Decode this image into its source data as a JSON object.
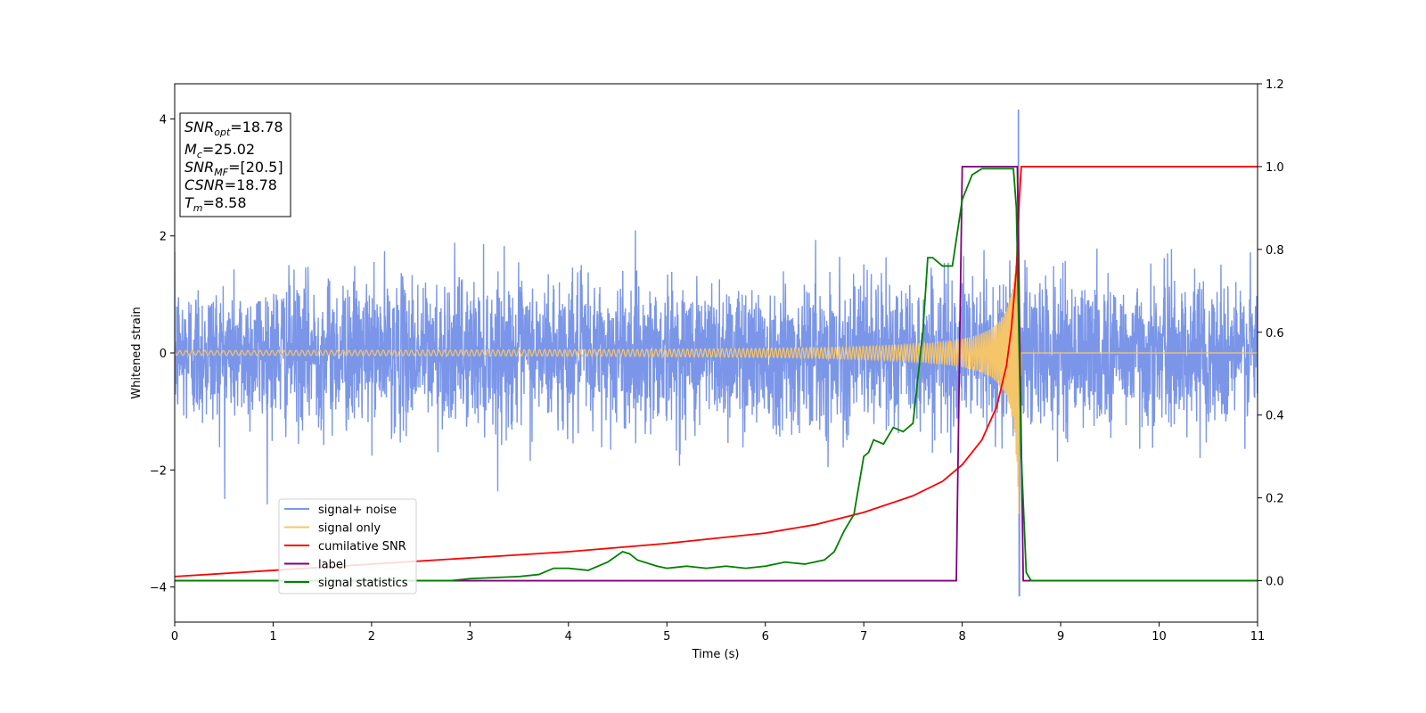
{
  "chart_data": {
    "type": "line",
    "title": "",
    "xlabel": "Time (s)",
    "ylabel": "Whitened strain",
    "xlim": [
      0,
      11
    ],
    "ylim": [
      -4.6,
      4.6
    ],
    "y2lim": [
      -0.1,
      1.2
    ],
    "xticks": [
      0,
      1,
      2,
      3,
      4,
      5,
      6,
      7,
      8,
      9,
      10,
      11
    ],
    "yticks": [
      -4,
      -2,
      0,
      2,
      4
    ],
    "y2ticks": [
      "0.0",
      "0.2",
      "0.4",
      "0.6",
      "0.8",
      "1.0",
      "1.2"
    ],
    "legend_placement": "lower-left",
    "grid": false,
    "annotation": {
      "lines": [
        {
          "base": "SNR",
          "sub": "opt",
          "value": "=18.78"
        },
        {
          "base": "M",
          "sub": "c",
          "value": "=25.02"
        },
        {
          "base": "SNR",
          "sub": "MF",
          "value": "=[20.5]"
        },
        {
          "base": "CSNR",
          "sub": "",
          "value": "=18.78"
        },
        {
          "base": "T",
          "sub": "m",
          "value": "=8.58"
        }
      ]
    },
    "series": [
      {
        "name": "signal+ noise",
        "axis": "left",
        "color": "#7b96e8",
        "description_values": {
          "kind": "noise",
          "typical_envelope": 1.7,
          "min": -4.15,
          "max": 4.15,
          "extreme_time": 8.57
        }
      },
      {
        "name": "signal only",
        "axis": "left",
        "color": "#f5c56a",
        "chirp": {
          "start_amplitude": 0.02,
          "peak_amplitude": 3.4,
          "merger_time": 8.58,
          "end_value": 0
        }
      },
      {
        "name": "cumilative SNR",
        "axis": "right",
        "color": "#ff0000",
        "x": [
          0,
          1,
          2,
          3,
          4,
          5,
          6,
          6.5,
          7,
          7.5,
          7.8,
          8.0,
          8.2,
          8.35,
          8.45,
          8.5,
          8.55,
          8.58,
          8.6,
          11
        ],
        "y": [
          0.01,
          0.025,
          0.04,
          0.055,
          0.07,
          0.09,
          0.115,
          0.135,
          0.165,
          0.205,
          0.24,
          0.28,
          0.34,
          0.42,
          0.52,
          0.61,
          0.75,
          0.92,
          1.0,
          1.0
        ]
      },
      {
        "name": "label",
        "axis": "right",
        "color": "#800080",
        "x": [
          0,
          7.94,
          8.0,
          8.56,
          8.62,
          11
        ],
        "y": [
          0,
          0,
          1,
          1,
          0,
          0
        ]
      },
      {
        "name": "signal statistics",
        "axis": "right",
        "color": "#008000",
        "x": [
          0,
          2.8,
          3.0,
          3.5,
          3.7,
          3.85,
          4.0,
          4.2,
          4.4,
          4.55,
          4.62,
          4.7,
          4.9,
          5.0,
          5.2,
          5.4,
          5.6,
          5.8,
          6.0,
          6.2,
          6.4,
          6.6,
          6.7,
          6.8,
          6.9,
          7.0,
          7.05,
          7.1,
          7.2,
          7.3,
          7.4,
          7.5,
          7.6,
          7.65,
          7.7,
          7.8,
          7.9,
          8.0,
          8.1,
          8.2,
          8.3,
          8.4,
          8.52,
          8.55,
          8.6,
          8.65,
          8.7,
          11
        ],
        "y": [
          0,
          0.0,
          0.005,
          0.01,
          0.015,
          0.03,
          0.03,
          0.025,
          0.045,
          0.07,
          0.065,
          0.05,
          0.035,
          0.03,
          0.035,
          0.03,
          0.035,
          0.03,
          0.035,
          0.045,
          0.04,
          0.05,
          0.07,
          0.12,
          0.16,
          0.3,
          0.31,
          0.34,
          0.33,
          0.37,
          0.36,
          0.38,
          0.6,
          0.78,
          0.78,
          0.76,
          0.76,
          0.92,
          0.98,
          0.995,
          0.995,
          0.995,
          0.995,
          0.9,
          0.3,
          0.02,
          0.0,
          0.0
        ]
      }
    ]
  }
}
